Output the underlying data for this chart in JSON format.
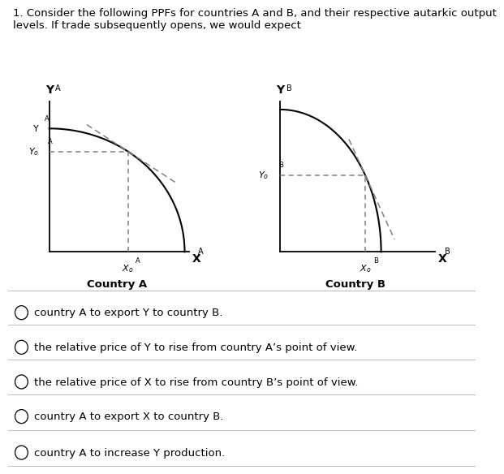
{
  "title_line1": "1. Consider the following PPFs for countries A and B, and their respective autarkic output",
  "title_line2": "levels. If trade subsequently opens, we would expect",
  "title_fontsize": 9.5,
  "bg_color": "#ffffff",
  "options": [
    "country A to export Y to country B.",
    "the relative price of Y to rise from country A’s point of view.",
    "the relative price of X to rise from country B’s point of view.",
    "country A to export X to country B.",
    "country A to increase Y production."
  ],
  "countryA_label": "Country A",
  "countryB_label": "Country B"
}
